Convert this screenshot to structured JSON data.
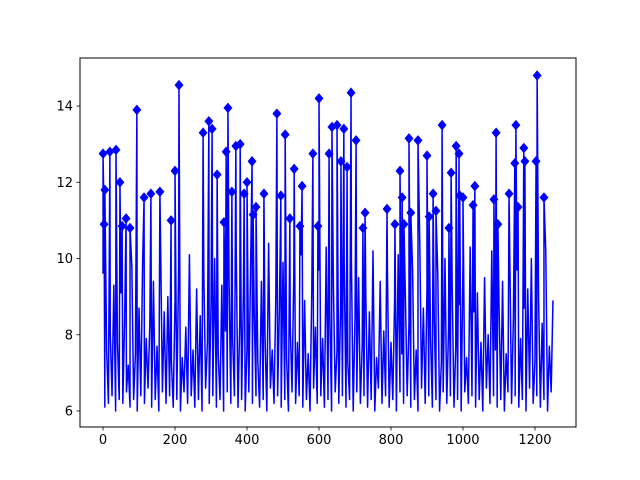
{
  "chart_data": {
    "type": "line",
    "title": "",
    "xlabel": "",
    "ylabel": "",
    "xlim": [
      -64,
      1314
    ],
    "ylim": [
      5.58,
      15.26
    ],
    "xticks": [
      0,
      200,
      400,
      600,
      800,
      1000,
      1200
    ],
    "yticks": [
      6,
      8,
      10,
      12,
      14
    ],
    "grid": false,
    "legend": "none",
    "colors": {
      "line": "#0000ff",
      "marker": "#0000ff",
      "axes": "#000000",
      "background": "#ffffff"
    },
    "line_series": {
      "x_start": 0,
      "x_step": 5,
      "y": [
        9.6,
        6.1,
        7.6,
        6.2,
        8.1,
        6.4,
        9.3,
        6.0,
        7.8,
        6.3,
        9.1,
        6.2,
        8.4,
        6.5,
        7.2,
        6.1,
        9.8,
        6.3,
        7.5,
        6.0,
        8.7,
        6.4,
        9.9,
        6.2,
        7.9,
        6.6,
        8.3,
        6.1,
        9.4,
        6.3,
        7.7,
        6.0,
        10.3,
        6.5,
        8.6,
        6.2,
        9.0,
        6.4,
        7.3,
        6.1,
        8.9,
        6.3,
        9.7,
        6.0,
        7.4,
        6.5,
        8.2,
        6.2,
        10.1,
        6.4,
        7.6,
        6.1,
        9.2,
        6.3,
        8.5,
        6.0,
        9.6,
        6.6,
        7.8,
        6.2,
        8.8,
        6.4,
        10.0,
        6.1,
        7.5,
        6.3,
        9.3,
        6.0,
        8.1,
        6.5,
        9.5,
        6.2,
        7.9,
        6.4,
        10.2,
        6.1,
        8.4,
        6.3,
        9.1,
        6.0,
        7.7,
        6.5,
        9.8,
        6.2,
        8.6,
        6.4,
        7.3,
        6.1,
        9.4,
        6.3,
        8.0,
        6.0,
        10.4,
        6.6,
        7.6,
        6.2,
        9.0,
        6.4,
        8.7,
        6.1,
        9.9,
        6.3,
        7.4,
        6.0,
        8.3,
        6.5,
        9.6,
        6.2,
        7.8,
        6.4,
        10.1,
        6.1,
        8.9,
        6.3,
        7.5,
        6.0,
        9.2,
        6.6,
        8.2,
        6.2,
        9.7,
        6.4,
        7.9,
        6.1,
        10.3,
        6.3,
        8.5,
        6.0,
        9.3,
        6.5,
        7.6,
        6.2,
        8.8,
        6.4,
        9.9,
        6.1,
        7.3,
        6.3,
        10.0,
        6.0,
        8.4,
        6.5,
        9.5,
        6.2,
        7.7,
        6.4,
        9.1,
        6.1,
        8.6,
        6.3,
        10.2,
        6.0,
        7.4,
        6.6,
        9.4,
        6.2,
        8.1,
        6.4,
        9.8,
        6.1,
        7.8,
        6.3,
        8.9,
        6.0,
        10.1,
        6.5,
        7.5,
        6.2,
        9.0,
        6.4,
        8.3,
        6.1,
        9.7,
        6.3,
        7.6,
        6.0,
        10.4,
        6.6,
        8.7,
        6.2,
        9.2,
        6.4,
        7.9,
        6.1,
        8.5,
        6.3,
        9.6,
        6.0,
        7.3,
        6.5,
        10.0,
        6.2,
        8.2,
        6.4,
        9.3,
        6.1,
        7.7,
        6.3,
        8.8,
        6.0,
        9.9,
        6.5,
        7.4,
        6.2,
        10.3,
        6.4,
        8.6,
        6.1,
        9.1,
        6.3,
        7.8,
        6.0,
        9.5,
        6.6,
        8.0,
        6.2,
        10.2,
        6.4,
        7.6,
        6.1,
        8.9,
        6.3,
        9.4,
        6.0,
        7.5,
        6.5,
        10.1,
        6.2,
        8.4,
        6.4,
        9.7,
        6.1,
        7.9,
        6.3,
        8.7,
        6.0,
        9.2,
        6.6,
        10.0,
        6.2,
        7.3,
        6.4,
        9.0,
        6.1,
        8.3,
        6.3,
        10.2,
        6.0,
        7.7,
        6.5,
        8.9
      ]
    },
    "markers": [
      [
        0,
        12.75
      ],
      [
        3,
        10.9
      ],
      [
        5,
        11.8
      ],
      [
        19,
        12.8
      ],
      [
        36,
        12.85
      ],
      [
        47,
        12.0
      ],
      [
        53,
        10.85
      ],
      [
        64,
        11.05
      ],
      [
        75,
        10.8
      ],
      [
        94,
        13.9
      ],
      [
        114,
        11.6
      ],
      [
        133,
        11.7
      ],
      [
        158,
        11.75
      ],
      [
        189,
        11.0
      ],
      [
        200,
        12.3
      ],
      [
        211,
        14.55
      ],
      [
        278,
        13.3
      ],
      [
        294,
        13.6
      ],
      [
        303,
        13.4
      ],
      [
        317,
        12.2
      ],
      [
        336,
        10.95
      ],
      [
        342,
        12.8
      ],
      [
        347,
        13.95
      ],
      [
        358,
        11.75
      ],
      [
        369,
        12.95
      ],
      [
        381,
        13.0
      ],
      [
        392,
        11.7
      ],
      [
        400,
        12.0
      ],
      [
        414,
        12.55
      ],
      [
        417,
        11.15
      ],
      [
        425,
        11.35
      ],
      [
        447,
        11.7
      ],
      [
        483,
        13.8
      ],
      [
        494,
        11.65
      ],
      [
        506,
        13.25
      ],
      [
        519,
        11.05
      ],
      [
        531,
        12.35
      ],
      [
        547,
        10.85
      ],
      [
        553,
        11.9
      ],
      [
        583,
        12.75
      ],
      [
        597,
        10.85
      ],
      [
        600,
        14.2
      ],
      [
        628,
        12.75
      ],
      [
        636,
        13.45
      ],
      [
        650,
        13.5
      ],
      [
        661,
        12.55
      ],
      [
        669,
        13.4
      ],
      [
        678,
        12.4
      ],
      [
        689,
        14.35
      ],
      [
        703,
        13.1
      ],
      [
        722,
        10.8
      ],
      [
        728,
        11.2
      ],
      [
        789,
        11.3
      ],
      [
        811,
        10.9
      ],
      [
        825,
        12.3
      ],
      [
        831,
        11.6
      ],
      [
        836,
        10.9
      ],
      [
        850,
        13.15
      ],
      [
        855,
        11.2
      ],
      [
        875,
        13.1
      ],
      [
        900,
        12.7
      ],
      [
        906,
        11.1
      ],
      [
        917,
        11.7
      ],
      [
        925,
        11.25
      ],
      [
        942,
        13.5
      ],
      [
        961,
        10.8
      ],
      [
        967,
        12.25
      ],
      [
        981,
        12.95
      ],
      [
        989,
        12.75
      ],
      [
        991,
        11.65
      ],
      [
        1000,
        11.6
      ],
      [
        1028,
        11.4
      ],
      [
        1033,
        11.9
      ],
      [
        1086,
        11.55
      ],
      [
        1092,
        13.3
      ],
      [
        1097,
        10.9
      ],
      [
        1128,
        11.7
      ],
      [
        1144,
        12.5
      ],
      [
        1147,
        13.5
      ],
      [
        1153,
        11.35
      ],
      [
        1169,
        12.9
      ],
      [
        1172,
        12.55
      ],
      [
        1203,
        12.55
      ],
      [
        1206,
        14.8
      ],
      [
        1225,
        11.6
      ]
    ]
  }
}
